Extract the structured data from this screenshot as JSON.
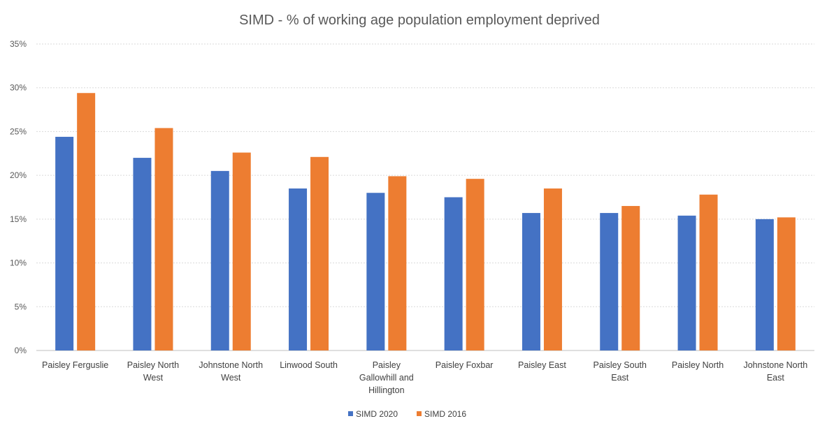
{
  "chart_data": {
    "type": "bar",
    "title": "SIMD - % of working age population employment deprived",
    "xlabel": "",
    "ylabel": "",
    "ylim": [
      0,
      35
    ],
    "ytick_values": [
      0,
      5,
      10,
      15,
      20,
      25,
      30,
      35
    ],
    "ytick_labels": [
      "0%",
      "5%",
      "10%",
      "15%",
      "20%",
      "25%",
      "30%",
      "35%"
    ],
    "categories": [
      "Paisley Ferguslie",
      "Paisley North West",
      "Johnstone North West",
      "Linwood South",
      "Paisley Gallowhill and Hillington",
      "Paisley Foxbar",
      "Paisley East",
      "Paisley South East",
      "Paisley North",
      "Johnstone North East"
    ],
    "category_lines": [
      [
        "Paisley Ferguslie"
      ],
      [
        "Paisley North",
        "West"
      ],
      [
        "Johnstone North",
        "West"
      ],
      [
        "Linwood South"
      ],
      [
        "Paisley",
        "Gallowhill and",
        "Hillington"
      ],
      [
        "Paisley Foxbar"
      ],
      [
        "Paisley East"
      ],
      [
        "Paisley South",
        "East"
      ],
      [
        "Paisley North"
      ],
      [
        "Johnstone North",
        "East"
      ]
    ],
    "series": [
      {
        "name": "SIMD 2020",
        "color": "#4472c4",
        "values": [
          24.4,
          22.0,
          20.5,
          18.5,
          18.0,
          17.5,
          15.7,
          15.7,
          15.4,
          15.0
        ]
      },
      {
        "name": "SIMD 2016",
        "color": "#ed7d31",
        "values": [
          29.4,
          25.4,
          22.6,
          22.1,
          19.9,
          19.6,
          18.5,
          16.5,
          17.8,
          15.2
        ]
      }
    ],
    "grid": true,
    "legend_position": "bottom"
  }
}
